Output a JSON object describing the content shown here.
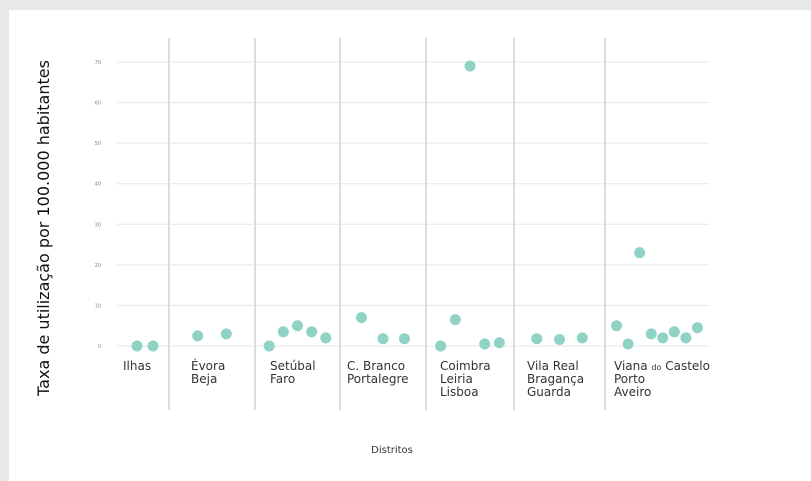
{
  "chart_data": {
    "type": "scatter",
    "xlabel": "Distritos",
    "ylabel": "Taxa de utilização por 100.000 habitantes",
    "ylim": [
      0,
      75
    ],
    "yticks": [
      0,
      10,
      20,
      30,
      40,
      50,
      60,
      70
    ],
    "grid": true,
    "groups": [
      {
        "lines": [
          [
            {
              "t": "Ilhas"
            }
          ]
        ],
        "values": [
          0,
          0
        ]
      },
      {
        "lines": [
          [
            {
              "t": "Évora"
            }
          ],
          [
            {
              "t": "Beja"
            }
          ]
        ],
        "values": [
          2.5,
          3
        ]
      },
      {
        "lines": [
          [
            {
              "t": "Setúbal"
            }
          ],
          [
            {
              "t": "Faro"
            }
          ]
        ],
        "values": [
          0,
          3.5,
          5,
          3.5,
          2
        ]
      },
      {
        "lines": [
          [
            {
              "t": "C. Branco"
            }
          ],
          [
            {
              "t": "Portalegre"
            }
          ]
        ],
        "values": [
          7,
          1.8,
          1.8
        ]
      },
      {
        "lines": [
          [
            {
              "t": "Coimbra"
            }
          ],
          [
            {
              "t": "Leiria"
            }
          ],
          [
            {
              "t": "Lisboa"
            }
          ]
        ],
        "values": [
          0,
          6.5,
          69,
          0.5,
          0.8
        ]
      },
      {
        "lines": [
          [
            {
              "t": "Vila Real"
            }
          ],
          [
            {
              "t": "Bragança"
            }
          ],
          [
            {
              "t": "Guarda"
            }
          ]
        ],
        "values": [
          1.8,
          1.6,
          2
        ]
      },
      {
        "lines": [
          [
            {
              "t": "Viana "
            },
            {
              "t": "do",
              "small": true
            },
            {
              "t": " Castelo"
            }
          ],
          [
            {
              "t": "Porto"
            }
          ],
          [
            {
              "t": "Aveiro"
            }
          ]
        ],
        "values": [
          5,
          0.5,
          23,
          3,
          2,
          3.5,
          2,
          4.5
        ]
      }
    ]
  },
  "colors": {
    "point": "#8fd3c5",
    "grid": "#e6e6e6",
    "separator": "#dcdcdc"
  }
}
